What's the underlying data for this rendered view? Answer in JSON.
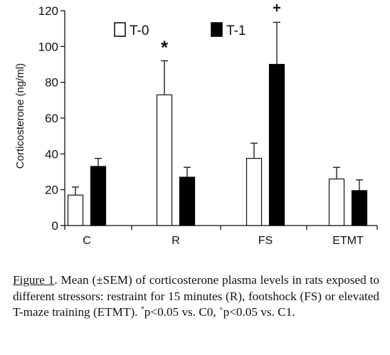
{
  "chart_data": {
    "type": "bar",
    "ylabel": "Corticosterone (ng/ml)",
    "ylim": [
      0,
      120
    ],
    "yticks": [
      0,
      20,
      40,
      60,
      80,
      100,
      120
    ],
    "categories": [
      "C",
      "R",
      "FS",
      "ETMT"
    ],
    "series": [
      {
        "name": "T-0",
        "values": [
          17,
          73,
          37.5,
          26
        ],
        "errors": [
          4.5,
          19,
          8.5,
          6.5
        ],
        "color": "#ffffff",
        "stroke": "#111111"
      },
      {
        "name": "T-1",
        "values": [
          33,
          27,
          90,
          19.5
        ],
        "errors": [
          4.5,
          5.5,
          23.5,
          6
        ],
        "color": "#000000",
        "stroke": "#000000"
      }
    ],
    "annotations": [
      {
        "text": "*",
        "category": "R",
        "series": "T-0"
      },
      {
        "text": "+",
        "category": "FS",
        "series": "T-1"
      }
    ],
    "legend": "top",
    "grid": false
  },
  "caption": {
    "figure_ref": "Figure 1",
    "part1": ". Mean (±SEM) of corticosterone plasma levels in rats exposed to different stressors: restraint for 15 minutes (R), footshock (FS) or elevated T-maze training (ETMT). ",
    "sup1": "*",
    "part2": "p<0.05 vs. C0, ",
    "sup2": "+",
    "part3": "p<0.05 vs. C1."
  }
}
